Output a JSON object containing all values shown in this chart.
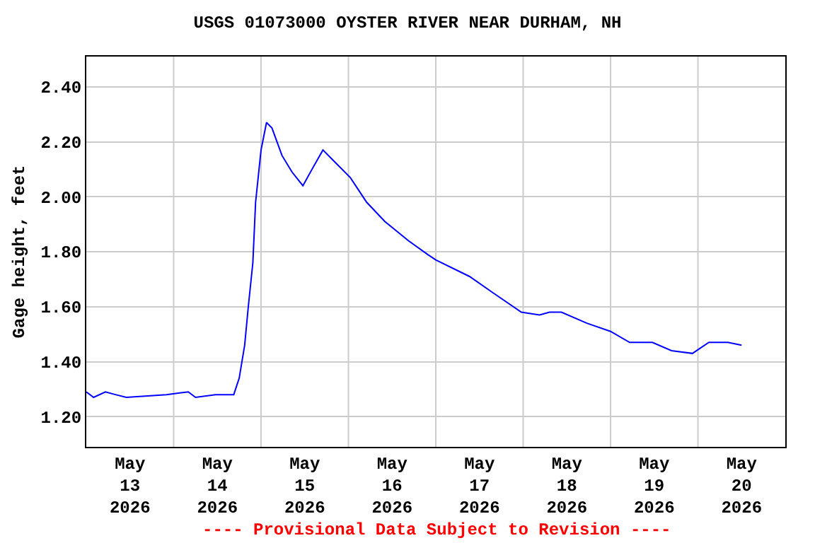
{
  "chart_data": {
    "type": "line",
    "title": "USGS 01073000 OYSTER RIVER NEAR DURHAM, NH",
    "ylabel": "Gage height, feet",
    "x": [
      "2026-05-13T00:00",
      "2026-05-13T02:00",
      "2026-05-13T05:15",
      "2026-05-13T08:00",
      "2026-05-13T11:00",
      "2026-05-13T22:00",
      "2026-05-14T04:00",
      "2026-05-14T06:00",
      "2026-05-14T11:30",
      "2026-05-14T16:30",
      "2026-05-14T18:00",
      "2026-05-14T19:30",
      "2026-05-14T20:30",
      "2026-05-14T21:45",
      "2026-05-14T22:30",
      "2026-05-15T00:00",
      "2026-05-15T01:30",
      "2026-05-15T03:00",
      "2026-05-15T05:45",
      "2026-05-15T08:30",
      "2026-05-15T11:30",
      "2026-05-15T14:00",
      "2026-05-15T17:00",
      "2026-05-15T20:00",
      "2026-05-16T00:30",
      "2026-05-16T05:00",
      "2026-05-16T10:00",
      "2026-05-16T16:30",
      "2026-05-16T21:45",
      "2026-05-17T00:00",
      "2026-05-17T09:15",
      "2026-05-17T15:45",
      "2026-05-17T23:30",
      "2026-05-18T04:30",
      "2026-05-18T07:15",
      "2026-05-18T10:30",
      "2026-05-18T17:30",
      "2026-05-19T00:00",
      "2026-05-19T05:15",
      "2026-05-19T11:30",
      "2026-05-19T16:45",
      "2026-05-19T22:30",
      "2026-05-20T03:00",
      "2026-05-20T08:15",
      "2026-05-20T12:00"
    ],
    "series": [
      {
        "color": "#0000ff",
        "values": [
          1.29,
          1.27,
          1.29,
          1.28,
          1.27,
          1.28,
          1.29,
          1.27,
          1.28,
          1.28,
          1.34,
          1.46,
          1.6,
          1.76,
          1.98,
          2.17,
          2.27,
          2.25,
          2.15,
          2.09,
          2.04,
          2.1,
          2.17,
          2.13,
          2.07,
          1.98,
          1.91,
          1.84,
          1.79,
          1.77,
          1.71,
          1.65,
          1.58,
          1.57,
          1.58,
          1.58,
          1.54,
          1.51,
          1.47,
          1.47,
          1.44,
          1.43,
          1.47,
          1.47,
          1.46
        ]
      }
    ],
    "xlim": [
      "2026-05-13T00:00",
      "2026-05-21T00:00"
    ],
    "xticks": [
      {
        "value": "2026-05-13T12:00",
        "label": "May\n13\n2026"
      },
      {
        "value": "2026-05-14T12:00",
        "label": "May\n14\n2026"
      },
      {
        "value": "2026-05-15T12:00",
        "label": "May\n15\n2026"
      },
      {
        "value": "2026-05-16T12:00",
        "label": "May\n16\n2026"
      },
      {
        "value": "2026-05-17T12:00",
        "label": "May\n17\n2026"
      },
      {
        "value": "2026-05-18T12:00",
        "label": "May\n18\n2026"
      },
      {
        "value": "2026-05-19T12:00",
        "label": "May\n19\n2026"
      },
      {
        "value": "2026-05-20T12:00",
        "label": "May\n20\n2026"
      },
      {
        "value": "2026-05-14T00:00",
        "label": null
      },
      {
        "value": "2026-05-15T00:00",
        "label": null
      },
      {
        "value": "2026-05-16T00:00",
        "label": null
      },
      {
        "value": "2026-05-17T00:00",
        "label": null
      },
      {
        "value": "2026-05-18T00:00",
        "label": null
      },
      {
        "value": "2026-05-19T00:00",
        "label": null
      },
      {
        "value": "2026-05-20T00:00",
        "label": null
      }
    ],
    "ylim": [
      1.09,
      2.51
    ],
    "yticks": [
      {
        "value": 1.2,
        "label": "1.20"
      },
      {
        "value": 1.4,
        "label": "1.40"
      },
      {
        "value": 1.6,
        "label": "1.60"
      },
      {
        "value": 1.8,
        "label": "1.80"
      },
      {
        "value": 2.0,
        "label": "2.00"
      },
      {
        "value": 2.2,
        "label": "2.20"
      },
      {
        "value": 2.4,
        "label": "2.40"
      }
    ],
    "grid": true,
    "marker": "none",
    "line_style": "solid",
    "annotations": [
      "---- Provisional Data Subject to Revision ----"
    ]
  }
}
